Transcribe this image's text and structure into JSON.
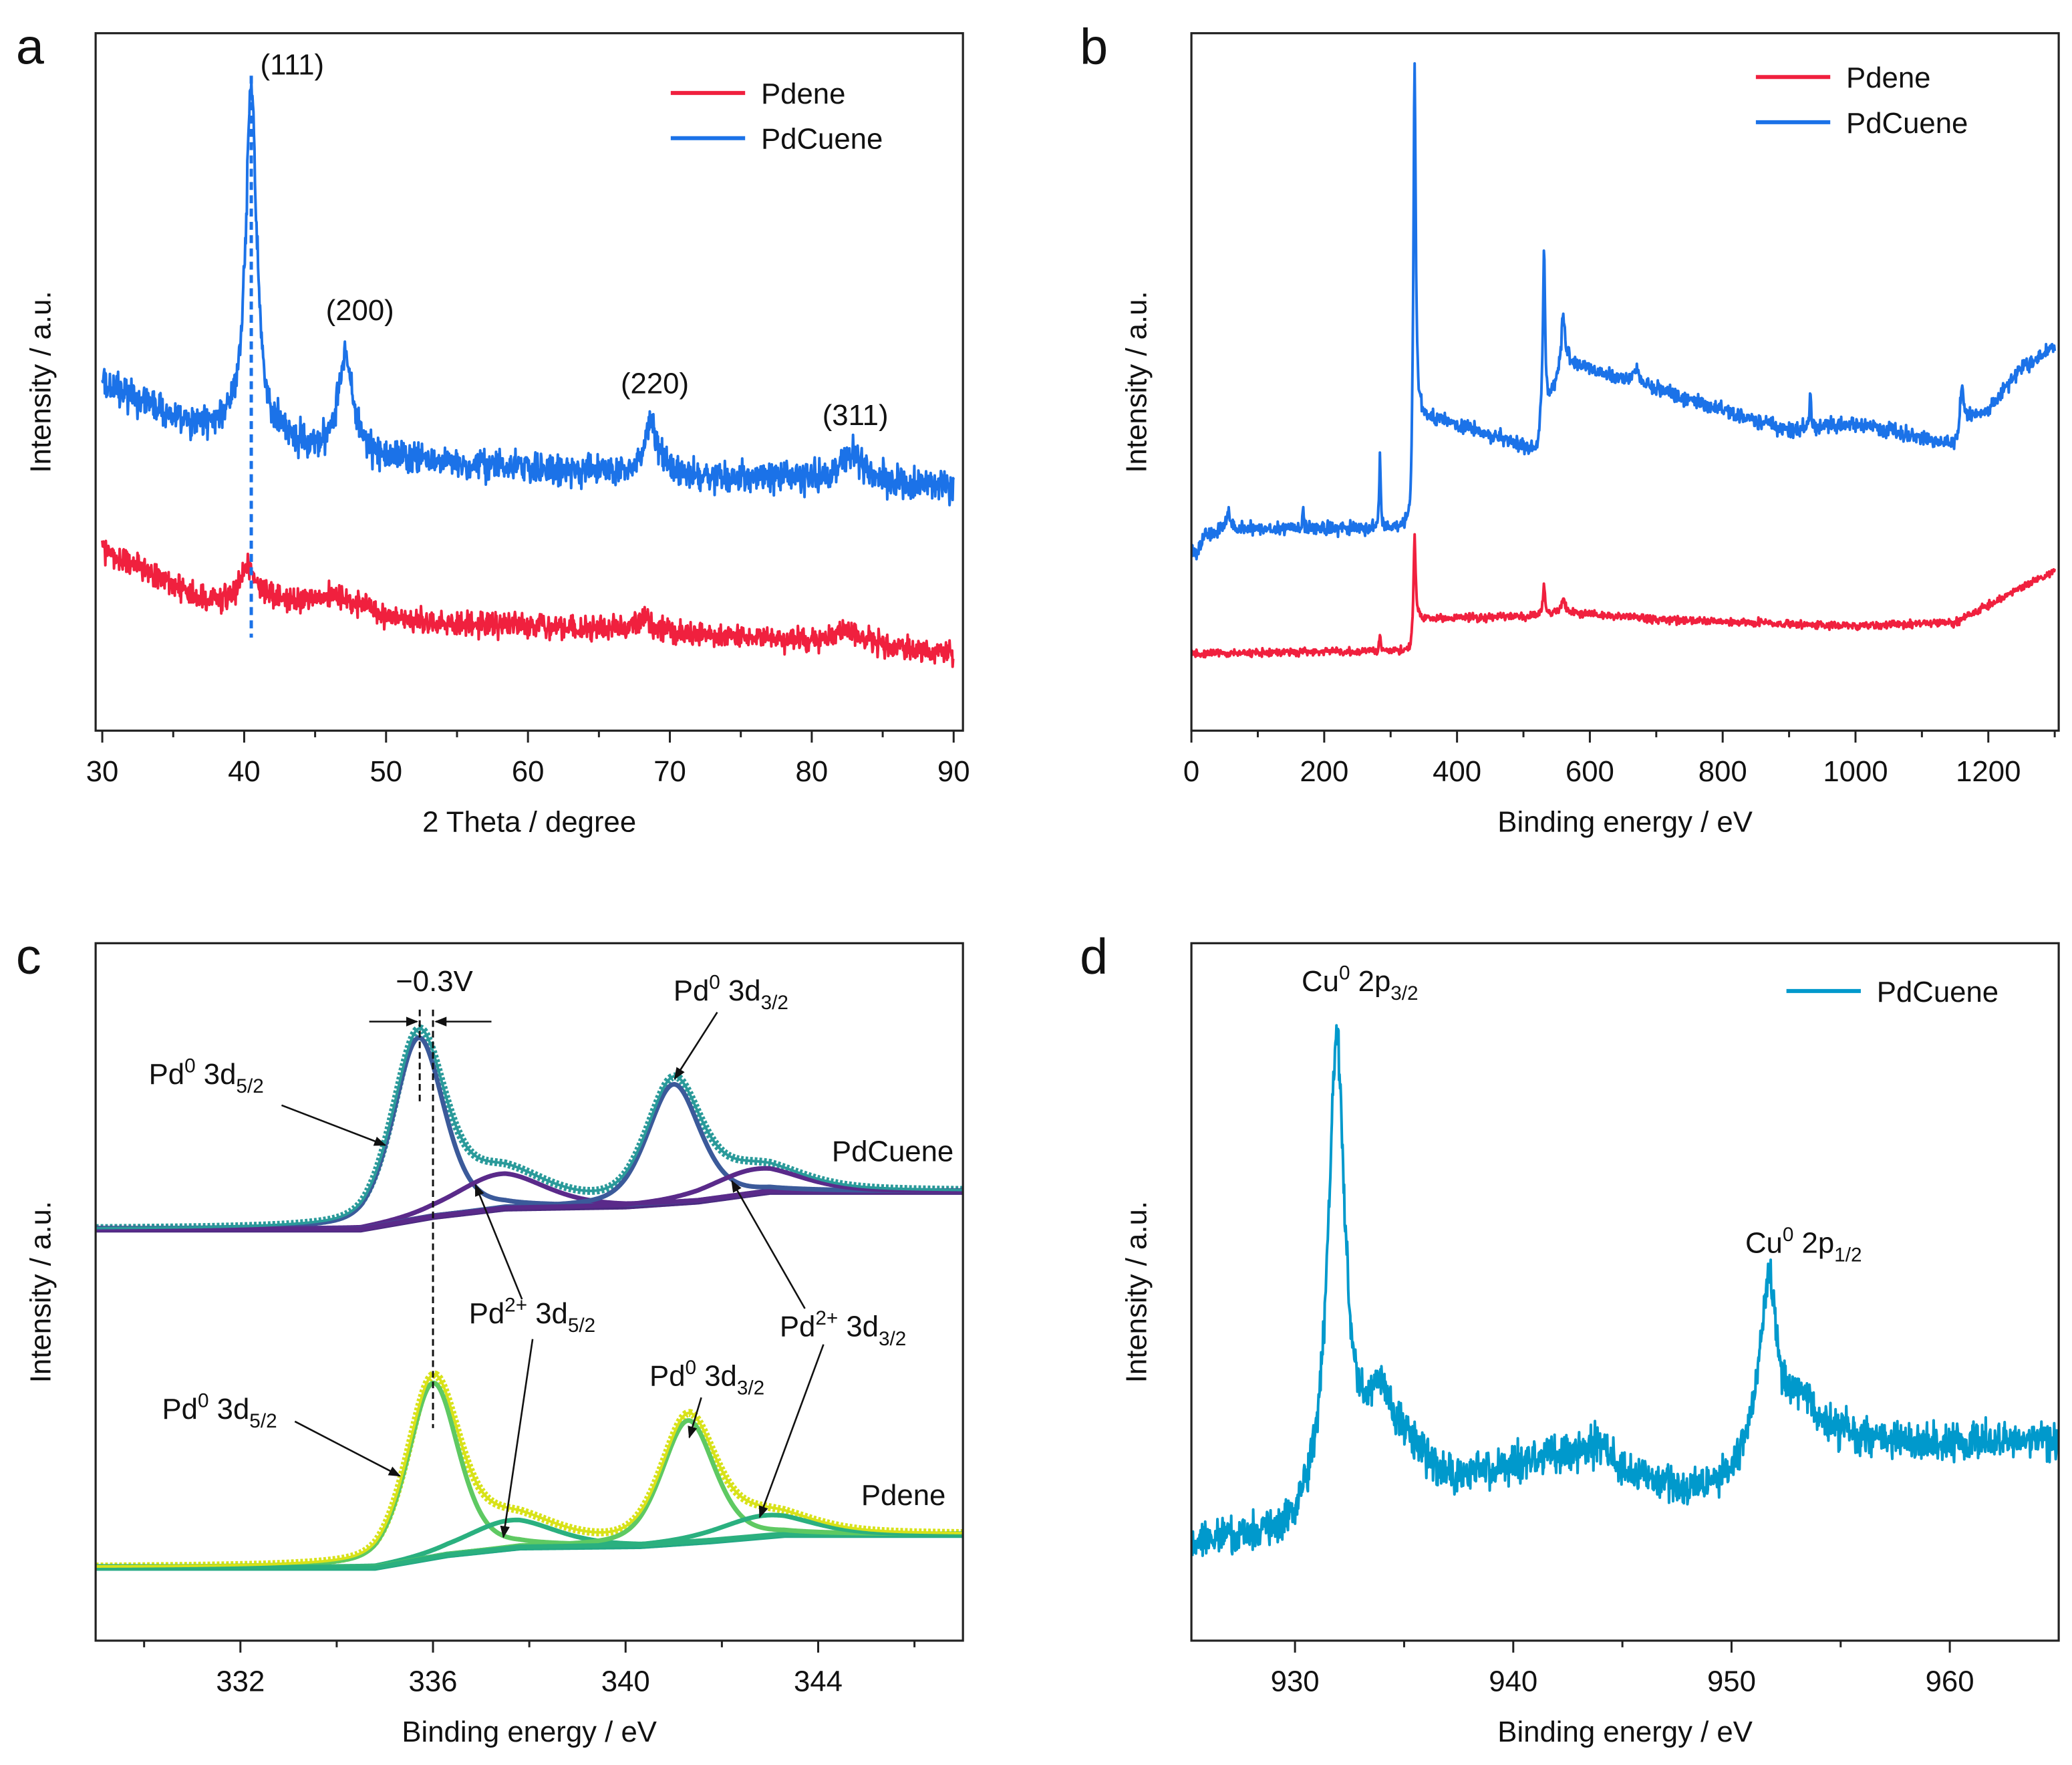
{
  "chart_data": [
    {
      "panel": "a",
      "type": "line",
      "xlabel": "2 Theta / degree",
      "ylabel": "Intensity / a.u.",
      "xlim": [
        29.5,
        90.7
      ],
      "ylim": [
        0,
        100
      ],
      "xticks": [
        30,
        40,
        50,
        60,
        70,
        80,
        90
      ],
      "xminor_step": 5,
      "legend": {
        "placement": "top-right",
        "entries": [
          {
            "label": "Pdene",
            "color": "#f0203e"
          },
          {
            "label": "PdCuene",
            "color": "#1b72e8"
          }
        ]
      },
      "series": [
        {
          "name": "PdCuene",
          "color": "#1b72e8",
          "xrange": [
            30,
            90
          ],
          "noise": 1.3,
          "baseline": [
            [
              30,
              49.5
            ],
            [
              33,
              47
            ],
            [
              36,
              43.5
            ],
            [
              40,
              43
            ],
            [
              45,
              40
            ],
            [
              50,
              39
            ],
            [
              60,
              37.5
            ],
            [
              70,
              36.5
            ],
            [
              80,
              36
            ],
            [
              90,
              35
            ]
          ],
          "peaks": [
            [
              40.5,
              50,
              0.9
            ],
            [
              47.1,
              14.5,
              1.2
            ],
            [
              68.7,
              7.5,
              1.1
            ],
            [
              82.8,
              4.5,
              1.6
            ]
          ]
        },
        {
          "name": "Pdene",
          "color": "#f0203e",
          "xrange": [
            30,
            90
          ],
          "noise": 1.1,
          "baseline": [
            [
              30,
              26
            ],
            [
              34,
              22
            ],
            [
              37,
              18.5
            ],
            [
              42,
              18.5
            ],
            [
              47,
              17.5
            ],
            [
              52,
              15.5
            ],
            [
              60,
              15
            ],
            [
              70,
              14
            ],
            [
              80,
              13
            ],
            [
              90,
              11
            ]
          ],
          "peaks": [
            [
              40.3,
              5,
              1.2
            ],
            [
              46.5,
              2,
              3
            ],
            [
              68.2,
              2,
              1.2
            ],
            [
              82.5,
              2,
              2
            ]
          ]
        }
      ],
      "reference_line": {
        "x": 40.5,
        "style": "dashed",
        "color": "#1b72e8"
      },
      "annotations": [
        "(111)",
        "(200)",
        "(220)",
        "(311)"
      ]
    },
    {
      "panel": "b",
      "type": "line",
      "xlabel": "Binding energy / eV",
      "ylabel": "Intensity / a.u.",
      "xlim": [
        0,
        1306
      ],
      "ylim": [
        0,
        100
      ],
      "xticks": [
        0,
        200,
        400,
        600,
        800,
        1000,
        1200
      ],
      "xminor_step": 100,
      "legend": {
        "placement": "top-right",
        "entries": [
          {
            "label": "Pdene",
            "color": "#f0203e"
          },
          {
            "label": "PdCuene",
            "color": "#1b72e8"
          }
        ]
      },
      "series": [
        {
          "name": "PdCuene",
          "color": "#1b72e8",
          "xrange": [
            0,
            1300
          ],
          "noise": 0.6,
          "baseline": [
            [
              0,
              26
            ],
            [
              8,
              25
            ],
            [
              20,
              28
            ],
            [
              60,
              29
            ],
            [
              330,
              29
            ],
            [
              338,
              45
            ],
            [
              400,
              44
            ],
            [
              520,
              40
            ],
            [
              528,
              44
            ],
            [
              560,
              53
            ],
            [
              700,
              49
            ],
            [
              900,
              43
            ],
            [
              1000,
              44
            ],
            [
              1150,
              41
            ],
            [
              1162,
              45
            ],
            [
              1200,
              46
            ],
            [
              1250,
              52
            ],
            [
              1300,
              55
            ]
          ],
          "peaks": [
            [
              336,
              55,
              4
            ],
            [
              531,
              24,
              4
            ],
            [
              560,
              7,
              6
            ],
            [
              284,
              10,
              3
            ],
            [
              168,
              3,
              3
            ],
            [
              55,
              3,
              6
            ],
            [
              932,
              5,
              3
            ],
            [
              1160,
              5,
              5
            ],
            [
              670,
              2,
              10
            ]
          ]
        },
        {
          "name": "Pdene",
          "color": "#f0203e",
          "xrange": [
            0,
            1300
          ],
          "noise": 0.35,
          "baseline": [
            [
              0,
              11
            ],
            [
              330,
              11.5
            ],
            [
              338,
              16
            ],
            [
              520,
              16.5
            ],
            [
              560,
              17
            ],
            [
              700,
              16
            ],
            [
              1000,
              15
            ],
            [
              1150,
              15.5
            ],
            [
              1200,
              18
            ],
            [
              1300,
              23
            ]
          ],
          "peaks": [
            [
              336,
              13,
              3.5
            ],
            [
              531,
              4,
              4
            ],
            [
              560,
              2,
              6
            ],
            [
              284,
              2,
              3
            ]
          ]
        }
      ]
    },
    {
      "panel": "c",
      "type": "line",
      "xlabel": "Binding energy / eV",
      "ylabel": "Intensity / a.u.",
      "xlim": [
        329,
        347
      ],
      "ylim": [
        0,
        100
      ],
      "xticks": [
        332,
        336,
        340,
        344
      ],
      "xminor_step": 2,
      "groups": [
        {
          "name": "PdCuene",
          "label": "PdCuene",
          "colors": {
            "envelope": "#2a9a9a",
            "pd0": "#3b5a9a",
            "pd2": "#5a2a8a",
            "bg": "#4b2a80"
          },
          "background": [
            [
              329,
              59
            ],
            [
              334.5,
              59
            ],
            [
              336,
              60.8
            ],
            [
              337.5,
              62
            ],
            [
              340,
              62.3
            ],
            [
              341.5,
              63
            ],
            [
              343,
              64.4
            ],
            [
              347,
              64.4
            ]
          ],
          "components": [
            [
              "Pd0 3d5/2",
              335.7,
              26,
              1.25
            ],
            [
              "Pd2+ 3d5/2",
              337.4,
              5,
              2.2
            ],
            [
              "Pd0 3d3/2",
              341.0,
              17,
              1.3
            ],
            [
              "Pd2+ 3d3/2",
              342.7,
              3.5,
              2.2
            ]
          ]
        },
        {
          "name": "Pdene",
          "label": "Pdene",
          "colors": {
            "envelope": "#d8e219",
            "pd0": "#5ec962",
            "pd2": "#2ab07f",
            "bg": "#23a884"
          },
          "background": [
            [
              329,
              10.5
            ],
            [
              334.8,
              10.5
            ],
            [
              336.3,
              12.3
            ],
            [
              337.8,
              13.4
            ],
            [
              340.3,
              13.6
            ],
            [
              341.8,
              14.3
            ],
            [
              343.3,
              15.2
            ],
            [
              347,
              15.2
            ]
          ],
          "components": [
            [
              "Pd0 3d5/2",
              336.0,
              25,
              1.25
            ],
            [
              "Pd2+ 3d5/2",
              337.6,
              4,
              2.2
            ],
            [
              "Pd0 3d3/2",
              341.3,
              17.5,
              1.3
            ],
            [
              "Pd2+ 3d3/2",
              342.9,
              3,
              2.2
            ]
          ]
        }
      ],
      "annotations": [
        {
          "parts": [
            {
              "t": "−0.3V"
            }
          ]
        },
        {
          "parts": [
            {
              "t": "Pd"
            },
            {
              "t": "0",
              "s": "sup"
            },
            {
              "t": " 3d"
            },
            {
              "t": "5/2",
              "s": "sub"
            }
          ]
        },
        {
          "parts": [
            {
              "t": "Pd"
            },
            {
              "t": "0",
              "s": "sup"
            },
            {
              "t": " 3d"
            },
            {
              "t": "3/2",
              "s": "sub"
            }
          ]
        },
        {
          "parts": [
            {
              "t": "Pd"
            },
            {
              "t": "2+",
              "s": "sup"
            },
            {
              "t": " 3d"
            },
            {
              "t": "5/2",
              "s": "sub"
            }
          ]
        },
        {
          "parts": [
            {
              "t": "Pd"
            },
            {
              "t": "2+",
              "s": "sup"
            },
            {
              "t": " 3d"
            },
            {
              "t": "3/2",
              "s": "sub"
            }
          ]
        },
        {
          "parts": [
            {
              "t": "Pd"
            },
            {
              "t": "0",
              "s": "sup"
            },
            {
              "t": " 3d"
            },
            {
              "t": "5/2",
              "s": "sub"
            }
          ]
        },
        {
          "parts": [
            {
              "t": "Pd"
            },
            {
              "t": "0",
              "s": "sup"
            },
            {
              "t": " 3d"
            },
            {
              "t": "3/2",
              "s": "sub"
            }
          ]
        }
      ]
    },
    {
      "panel": "d",
      "type": "line",
      "xlabel": "Binding energy / eV",
      "ylabel": "Intensity / a.u.",
      "xlim": [
        925.3,
        964.9
      ],
      "ylim": [
        0,
        100
      ],
      "xticks": [
        930,
        940,
        950,
        960
      ],
      "xminor_step": 5,
      "legend": {
        "placement": "top-right",
        "entries": [
          {
            "label": "PdCuene",
            "color": "#0099cc"
          }
        ]
      },
      "series": [
        {
          "name": "PdCuene",
          "color": "#0099cc",
          "xrange": [
            925.3,
            964.9
          ],
          "noise": 1.6,
          "baseline": [
            [
              925,
              14
            ],
            [
              929.8,
              15
            ],
            [
              932,
              22
            ],
            [
              935,
              27
            ],
            [
              937,
              23
            ],
            [
              940,
              25
            ],
            [
              944,
              28
            ],
            [
              945,
              24
            ],
            [
              948,
              21
            ],
            [
              950,
              23
            ],
            [
              951,
              27
            ],
            [
              955,
              29
            ],
            [
              960,
              28
            ],
            [
              965,
              29
            ]
          ],
          "peaks": [
            [
              931.9,
              64,
              0.9
            ],
            [
              933.9,
              9,
              1.4
            ],
            [
              951.7,
              24,
              0.9
            ],
            [
              953.2,
              6,
              1.5
            ]
          ]
        }
      ],
      "annotations": [
        {
          "parts": [
            {
              "t": "Cu"
            },
            {
              "t": "0",
              "s": "sup"
            },
            {
              "t": " 2p"
            },
            {
              "t": "3/2",
              "s": "sub"
            }
          ]
        },
        {
          "parts": [
            {
              "t": "Cu"
            },
            {
              "t": "0",
              "s": "sup"
            },
            {
              "t": " 2p"
            },
            {
              "t": "1/2",
              "s": "sub"
            }
          ]
        }
      ]
    }
  ]
}
